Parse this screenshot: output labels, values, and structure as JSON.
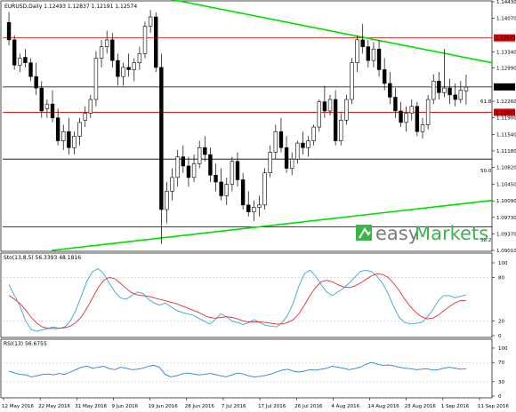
{
  "main": {
    "header": "EURUSD,Daily  1.12493 1.12837 1.12191 1.12574",
    "y_ticks": [
      "1.14430",
      "1.14070",
      "1.13340",
      "1.12990",
      "1.12260",
      "1.11900",
      "1.11540",
      "1.11180",
      "1.10820",
      "1.10450",
      "1.10090",
      "1.09730",
      "1.09370",
      "1.09010"
    ],
    "current_price": "1.12574",
    "level_upper": "1.13643",
    "level_lower": "1.12021",
    "fib_618": "61.8",
    "fib_500": "50.0",
    "fib_382": "38.2",
    "ylim": [
      1.0901,
      1.1443
    ],
    "candles": [
      [
        1.1398,
        1.1421,
        1.1348,
        1.136
      ],
      [
        1.136,
        1.137,
        1.1295,
        1.1305
      ],
      [
        1.1305,
        1.133,
        1.129,
        1.132
      ],
      [
        1.1322,
        1.134,
        1.13,
        1.131
      ],
      [
        1.131,
        1.132,
        1.127,
        1.128
      ],
      [
        1.128,
        1.131,
        1.124,
        1.1255
      ],
      [
        1.1255,
        1.127,
        1.119,
        1.1205
      ],
      [
        1.121,
        1.123,
        1.119,
        1.122
      ],
      [
        1.122,
        1.125,
        1.118,
        1.119
      ],
      [
        1.119,
        1.121,
        1.113,
        1.114
      ],
      [
        1.114,
        1.1175,
        1.112,
        1.116
      ],
      [
        1.116,
        1.119,
        1.111,
        1.1125
      ],
      [
        1.1125,
        1.116,
        1.111,
        1.115
      ],
      [
        1.115,
        1.119,
        1.113,
        1.118
      ],
      [
        1.1185,
        1.1215,
        1.117,
        1.12
      ],
      [
        1.12,
        1.124,
        1.119,
        1.123
      ],
      [
        1.123,
        1.1335,
        1.1215,
        1.132
      ],
      [
        1.132,
        1.136,
        1.13,
        1.1345
      ],
      [
        1.1345,
        1.138,
        1.133,
        1.136
      ],
      [
        1.136,
        1.1375,
        1.13,
        1.1315
      ],
      [
        1.1315,
        1.133,
        1.126,
        1.128
      ],
      [
        1.128,
        1.131,
        1.126,
        1.13
      ],
      [
        1.13,
        1.133,
        1.128,
        1.1295
      ],
      [
        1.1295,
        1.132,
        1.127,
        1.131
      ],
      [
        1.131,
        1.1345,
        1.1295,
        1.133
      ],
      [
        1.133,
        1.14,
        1.132,
        1.139
      ],
      [
        1.139,
        1.1425,
        1.1375,
        1.141
      ],
      [
        1.141,
        1.142,
        1.129,
        1.13
      ],
      [
        1.13,
        1.133,
        1.0915,
        1.099
      ],
      [
        1.099,
        1.105,
        1.096,
        1.103
      ],
      [
        1.103,
        1.108,
        1.101,
        1.106
      ],
      [
        1.106,
        1.112,
        1.104,
        1.1105
      ],
      [
        1.1105,
        1.113,
        1.107,
        1.1085
      ],
      [
        1.1085,
        1.1105,
        1.104,
        1.106
      ],
      [
        1.106,
        1.111,
        1.105,
        1.109
      ],
      [
        1.109,
        1.114,
        1.108,
        1.1125
      ],
      [
        1.1125,
        1.115,
        1.1095,
        1.111
      ],
      [
        1.111,
        1.1125,
        1.105,
        1.1065
      ],
      [
        1.1065,
        1.109,
        1.103,
        1.105
      ],
      [
        1.105,
        1.108,
        1.101,
        1.102
      ],
      [
        1.102,
        1.106,
        1.1,
        1.1045
      ],
      [
        1.1045,
        1.1105,
        1.103,
        1.1095
      ],
      [
        1.1095,
        1.1115,
        1.104,
        1.1055
      ],
      [
        1.1055,
        1.107,
        1.099,
        1.1
      ],
      [
        1.1,
        1.103,
        1.0975,
        1.0985
      ],
      [
        1.0985,
        1.101,
        1.0965,
        1.0995
      ],
      [
        1.0995,
        1.102,
        1.0975,
        1.1
      ],
      [
        1.1,
        1.108,
        1.099,
        1.107
      ],
      [
        1.107,
        1.113,
        1.106,
        1.1115
      ],
      [
        1.1115,
        1.1175,
        1.11,
        1.116
      ],
      [
        1.116,
        1.119,
        1.1115,
        1.1125
      ],
      [
        1.1125,
        1.115,
        1.107,
        1.108
      ],
      [
        1.108,
        1.1115,
        1.1065,
        1.11
      ],
      [
        1.11,
        1.114,
        1.109,
        1.1135
      ],
      [
        1.1135,
        1.116,
        1.111,
        1.1125
      ],
      [
        1.1125,
        1.115,
        1.1105,
        1.114
      ],
      [
        1.114,
        1.1175,
        1.113,
        1.117
      ],
      [
        1.117,
        1.123,
        1.116,
        1.1225
      ],
      [
        1.1225,
        1.126,
        1.119,
        1.1205
      ],
      [
        1.1205,
        1.124,
        1.1195,
        1.123
      ],
      [
        1.123,
        1.125,
        1.113,
        1.114
      ],
      [
        1.114,
        1.12,
        1.113,
        1.1185
      ],
      [
        1.1185,
        1.124,
        1.1175,
        1.123
      ],
      [
        1.123,
        1.132,
        1.122,
        1.131
      ],
      [
        1.131,
        1.137,
        1.129,
        1.136
      ],
      [
        1.136,
        1.1395,
        1.133,
        1.1345
      ],
      [
        1.1345,
        1.136,
        1.13,
        1.1315
      ],
      [
        1.1315,
        1.1355,
        1.13,
        1.134
      ],
      [
        1.134,
        1.136,
        1.128,
        1.1295
      ],
      [
        1.1295,
        1.132,
        1.125,
        1.1265
      ],
      [
        1.1265,
        1.129,
        1.122,
        1.1235
      ],
      [
        1.1235,
        1.1255,
        1.119,
        1.1205
      ],
      [
        1.1205,
        1.1225,
        1.117,
        1.118
      ],
      [
        1.118,
        1.1215,
        1.116,
        1.12
      ],
      [
        1.12,
        1.123,
        1.1185,
        1.1215
      ],
      [
        1.1215,
        1.1225,
        1.115,
        1.116
      ],
      [
        1.116,
        1.119,
        1.1145,
        1.1175
      ],
      [
        1.1175,
        1.124,
        1.1165,
        1.123
      ],
      [
        1.123,
        1.1285,
        1.122,
        1.127
      ],
      [
        1.127,
        1.129,
        1.123,
        1.1245
      ],
      [
        1.1245,
        1.134,
        1.1235,
        1.1255
      ],
      [
        1.1255,
        1.1275,
        1.122,
        1.124
      ],
      [
        1.124,
        1.1265,
        1.1215,
        1.123
      ],
      [
        1.123,
        1.127,
        1.1222,
        1.125
      ],
      [
        1.1249,
        1.1284,
        1.1219,
        1.1257
      ]
    ],
    "green_upper": [
      [
        0.265,
        1.1465
      ],
      [
        1.0,
        1.131
      ]
    ],
    "green_lower": [
      [
        0.1,
        1.0901
      ],
      [
        1.0,
        1.101
      ]
    ]
  },
  "stoch": {
    "label": "Sto(13,8,5) 56.3393 48.1816",
    "ticks": [
      "100",
      "80",
      "20",
      "0"
    ],
    "main": [
      70,
      55,
      40,
      20,
      8,
      6,
      8,
      10,
      12,
      10,
      12,
      20,
      35,
      55,
      75,
      88,
      92,
      85,
      72,
      60,
      52,
      50,
      55,
      60,
      58,
      50,
      45,
      42,
      45,
      40,
      35,
      32,
      30,
      28,
      24,
      20,
      16,
      22,
      30,
      26,
      20,
      18,
      15,
      18,
      22,
      18,
      14,
      13,
      12,
      18,
      28,
      45,
      68,
      85,
      90,
      82,
      70,
      60,
      55,
      60,
      65,
      72,
      80,
      88,
      90,
      88,
      82,
      72,
      58,
      40,
      25,
      18,
      16,
      17,
      18,
      25,
      35,
      48,
      55,
      55,
      52,
      54,
      56
    ],
    "signal": [
      55,
      50,
      44,
      35,
      25,
      17,
      12,
      10,
      10,
      10,
      11,
      13,
      18,
      26,
      38,
      52,
      66,
      76,
      80,
      78,
      72,
      65,
      59,
      56,
      55,
      54,
      52,
      50,
      48,
      46,
      44,
      41,
      38,
      35,
      32,
      28,
      25,
      24,
      25,
      26,
      25,
      23,
      20,
      19,
      19,
      19,
      18,
      17,
      16,
      16,
      18,
      22,
      30,
      42,
      55,
      66,
      74,
      76,
      74,
      70,
      67,
      66,
      68,
      72,
      77,
      82,
      85,
      84,
      80,
      72,
      62,
      50,
      40,
      32,
      26,
      23,
      24,
      28,
      34,
      40,
      45,
      48,
      48
    ]
  },
  "rsi": {
    "label": "RSI(13) 56.6755",
    "ticks": [
      "100",
      "70",
      "30",
      "0"
    ],
    "values": [
      52,
      48,
      45,
      44,
      40,
      42,
      45,
      46,
      44,
      47,
      45,
      50,
      55,
      60,
      62,
      58,
      60,
      62,
      57,
      55,
      60,
      58,
      55,
      56,
      58,
      62,
      64,
      60,
      45,
      40,
      42,
      46,
      48,
      46,
      44,
      45,
      47,
      45,
      42,
      40,
      44,
      48,
      46,
      42,
      40,
      41,
      43,
      46,
      50,
      54,
      56,
      52,
      50,
      52,
      55,
      54,
      56,
      58,
      62,
      60,
      58,
      55,
      57,
      60,
      66,
      70,
      67,
      64,
      65,
      63,
      60,
      58,
      57,
      55,
      56,
      57,
      54,
      55,
      58,
      60,
      58,
      56,
      57
    ]
  },
  "x_labels": [
    "12 May 2016",
    "22 May 2016",
    "31 May 2016",
    "9 Jun 2016",
    "19 Jun 2016",
    "28 Jun 2016",
    "7 Jul 2016",
    "17 Jul 2016",
    "26 Jul 2016",
    "4 Aug 2016",
    "14 Aug 2016",
    "23 Aug 2016",
    "1 Sep 2016",
    "11 Sep 2016"
  ],
  "logo": {
    "part1": "easy",
    "part2": "Markets"
  },
  "colors": {
    "green": "#00dd00",
    "red": "#e00000",
    "stoch_main": "#3aa6d0",
    "stoch_signal": "#e03030",
    "rsi": "#2a7fe0",
    "logo_green": "#39b54a"
  }
}
